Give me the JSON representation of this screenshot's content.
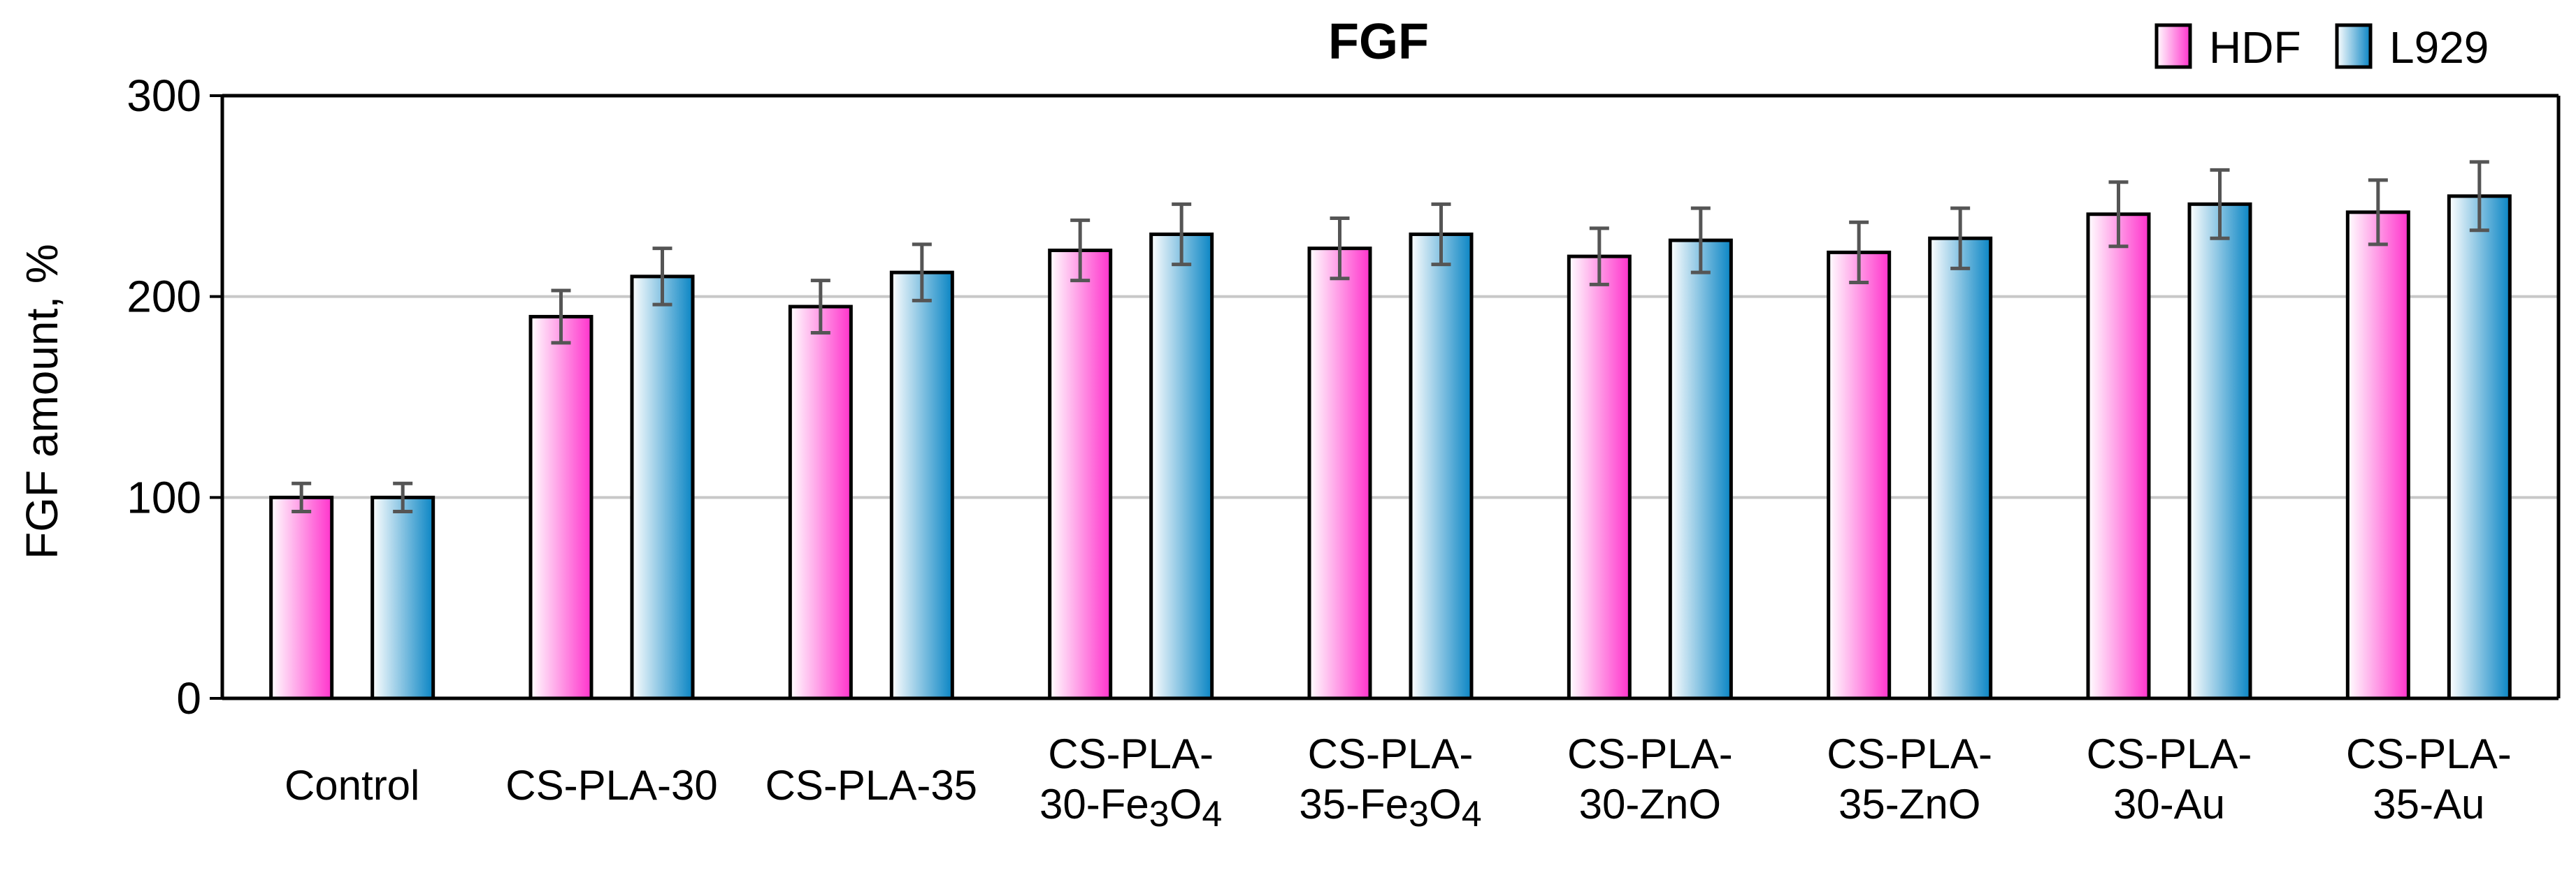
{
  "chart_data": {
    "type": "bar",
    "title": "FGF",
    "ylabel": "FGF amount, %",
    "xlabel": "",
    "ylim": [
      0,
      300
    ],
    "yticks": [
      0,
      100,
      200,
      300
    ],
    "grid": true,
    "legend_position": "top-right",
    "categories": [
      [
        "Control"
      ],
      [
        "CS-PLA-30"
      ],
      [
        "CS-PLA-35"
      ],
      [
        "CS-PLA-",
        "30-Fe3O4"
      ],
      [
        "CS-PLA-",
        "35-Fe3O4"
      ],
      [
        "CS-PLA-",
        "30-ZnO"
      ],
      [
        "CS-PLA-",
        "35-ZnO"
      ],
      [
        "CS-PLA-",
        "30-Au"
      ],
      [
        "CS-PLA-",
        "35-Au"
      ]
    ],
    "series": [
      {
        "name": "HDF",
        "color_light": "#ffffff",
        "color_dark": "#ff33cc",
        "values": [
          100,
          190,
          195,
          223,
          224,
          220,
          222,
          241,
          242
        ],
        "errors": [
          7,
          13,
          13,
          15,
          15,
          14,
          15,
          16,
          16
        ]
      },
      {
        "name": "L929",
        "color_light": "#ffffff",
        "color_dark": "#0a85c4",
        "values": [
          100,
          210,
          212,
          231,
          231,
          228,
          229,
          246,
          250
        ],
        "errors": [
          7,
          14,
          14,
          15,
          15,
          16,
          15,
          17,
          17
        ]
      }
    ]
  }
}
